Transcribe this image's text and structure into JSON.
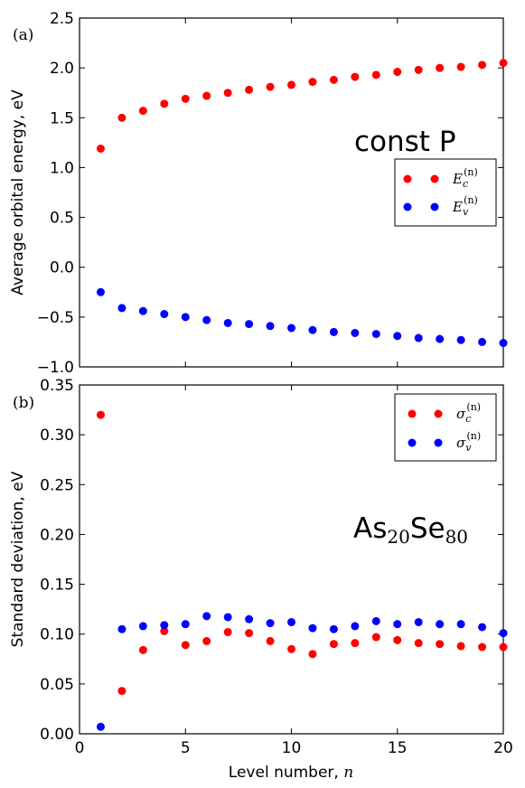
{
  "chart_data": [
    {
      "type": "scatter",
      "panel_label": "(a)",
      "annotation": "const P",
      "ylabel": "Average orbital energy, eV",
      "xlim": [
        0,
        20
      ],
      "ylim": [
        -1.0,
        2.5
      ],
      "x_ticks": [
        "0",
        "5",
        "10",
        "15",
        "20"
      ],
      "y_ticks": [
        "−1.0",
        "−0.5",
        "0.0",
        "0.5",
        "1.0",
        "1.5",
        "2.0",
        "2.5"
      ],
      "y_tick_values": [
        -1.0,
        -0.5,
        0.0,
        0.5,
        1.0,
        1.5,
        2.0,
        2.5
      ],
      "show_x_tick_labels": false,
      "legend_position": "right",
      "series": [
        {
          "legend_main": "E",
          "legend_sub": "c",
          "legend_sup": "(n)",
          "color": "#ff0000",
          "x": [
            1,
            2,
            3,
            4,
            5,
            6,
            7,
            8,
            9,
            10,
            11,
            12,
            13,
            14,
            15,
            16,
            17,
            18,
            19,
            20
          ],
          "y": [
            1.19,
            1.5,
            1.57,
            1.64,
            1.69,
            1.72,
            1.75,
            1.78,
            1.81,
            1.83,
            1.86,
            1.88,
            1.91,
            1.93,
            1.96,
            1.98,
            2.0,
            2.01,
            2.03,
            2.05
          ]
        },
        {
          "legend_main": "E",
          "legend_sub": "v",
          "legend_sup": "(n)",
          "color": "#0000ff",
          "x": [
            1,
            2,
            3,
            4,
            5,
            6,
            7,
            8,
            9,
            10,
            11,
            12,
            13,
            14,
            15,
            16,
            17,
            18,
            19,
            20
          ],
          "y": [
            -0.25,
            -0.41,
            -0.44,
            -0.47,
            -0.5,
            -0.53,
            -0.56,
            -0.57,
            -0.59,
            -0.61,
            -0.63,
            -0.65,
            -0.66,
            -0.67,
            -0.69,
            -0.71,
            -0.72,
            -0.73,
            -0.75,
            -0.76
          ]
        }
      ]
    },
    {
      "type": "scatter",
      "panel_label": "(b)",
      "annotation_main_1": "As",
      "annotation_sub_1": "20",
      "annotation_main_2": "Se",
      "annotation_sub_2": "80",
      "xlabel": "Level number, ",
      "xlabel_var": "n",
      "ylabel": "Standard deviation, eV",
      "xlim": [
        0,
        20
      ],
      "ylim": [
        0.0,
        0.35
      ],
      "x_ticks": [
        "0",
        "5",
        "10",
        "15",
        "20"
      ],
      "x_tick_values": [
        0,
        5,
        10,
        15,
        20
      ],
      "y_ticks": [
        "0.00",
        "0.05",
        "0.10",
        "0.15",
        "0.20",
        "0.25",
        "0.30",
        "0.35"
      ],
      "y_tick_values": [
        0.0,
        0.05,
        0.1,
        0.15,
        0.2,
        0.25,
        0.3,
        0.35
      ],
      "show_x_tick_labels": true,
      "legend_position": "top-right",
      "series": [
        {
          "legend_main": "σ",
          "legend_sub": "c",
          "legend_sup": "(n)",
          "color": "#ff0000",
          "x": [
            1,
            2,
            3,
            4,
            5,
            6,
            7,
            8,
            9,
            10,
            11,
            12,
            13,
            14,
            15,
            16,
            17,
            18,
            19,
            20
          ],
          "y": [
            0.32,
            0.043,
            0.084,
            0.103,
            0.089,
            0.093,
            0.102,
            0.101,
            0.093,
            0.085,
            0.08,
            0.09,
            0.091,
            0.097,
            0.094,
            0.091,
            0.09,
            0.088,
            0.087,
            0.087
          ]
        },
        {
          "legend_main": "σ",
          "legend_sub": "v",
          "legend_sup": "(n)",
          "color": "#0000ff",
          "x": [
            1,
            2,
            3,
            4,
            5,
            6,
            7,
            8,
            9,
            10,
            11,
            12,
            13,
            14,
            15,
            16,
            17,
            18,
            19,
            20
          ],
          "y": [
            0.007,
            0.105,
            0.108,
            0.109,
            0.11,
            0.118,
            0.117,
            0.115,
            0.111,
            0.112,
            0.106,
            0.105,
            0.108,
            0.113,
            0.11,
            0.112,
            0.11,
            0.11,
            0.107,
            0.101
          ]
        }
      ]
    }
  ]
}
